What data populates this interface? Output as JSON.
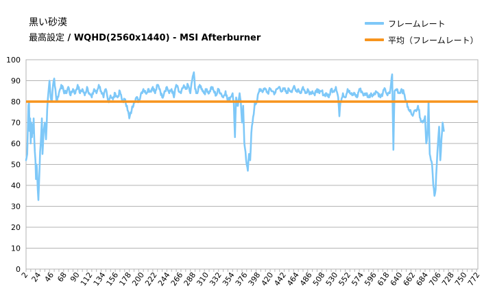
{
  "chart_data": {
    "type": "line",
    "title": "黒い砂漠",
    "subtitle_plain": "最高設定",
    "subtitle_bold": " / WQHD(2560x1440) - MSI Afterburner",
    "legend_position": "top-right",
    "ylim": [
      0,
      100
    ],
    "y_ticks": [
      "0",
      "10",
      "20",
      "30",
      "40",
      "50",
      "60",
      "70",
      "80",
      "90",
      "100"
    ],
    "x_ticks": [
      "2",
      "24",
      "46",
      "68",
      "90",
      "112",
      "134",
      "156",
      "178",
      "200",
      "222",
      "244",
      "266",
      "288",
      "310",
      "332",
      "354",
      "376",
      "398",
      "420",
      "442",
      "464",
      "486",
      "508",
      "530",
      "552",
      "574",
      "596",
      "618",
      "640",
      "662",
      "684",
      "706",
      "728",
      "750",
      "772"
    ],
    "x_first": 2,
    "x_last": 772,
    "grid": true,
    "series": [
      {
        "name": "フレームレート",
        "color": "#7EC8F8",
        "keypoints": [
          [
            2,
            52
          ],
          [
            4,
            55
          ],
          [
            6,
            78
          ],
          [
            7,
            80
          ],
          [
            8,
            66
          ],
          [
            9,
            72
          ],
          [
            10,
            60
          ],
          [
            11,
            70
          ],
          [
            12,
            63
          ],
          [
            13,
            69
          ],
          [
            14,
            65
          ],
          [
            15,
            72
          ],
          [
            16,
            62
          ],
          [
            18,
            52
          ],
          [
            19,
            43
          ],
          [
            20,
            50
          ],
          [
            21,
            45
          ],
          [
            22,
            38
          ],
          [
            23,
            33
          ],
          [
            24,
            40
          ],
          [
            25,
            48
          ],
          [
            26,
            56
          ],
          [
            27,
            60
          ],
          [
            28,
            66
          ],
          [
            29,
            72
          ],
          [
            30,
            55
          ],
          [
            32,
            66
          ],
          [
            34,
            70
          ],
          [
            36,
            62
          ],
          [
            38,
            76
          ],
          [
            40,
            84
          ],
          [
            42,
            90
          ],
          [
            44,
            82
          ],
          [
            46,
            80
          ],
          [
            48,
            88
          ],
          [
            50,
            91
          ],
          [
            52,
            86
          ],
          [
            54,
            80
          ],
          [
            58,
            84
          ],
          [
            62,
            88
          ],
          [
            66,
            85
          ],
          [
            70,
            84
          ],
          [
            74,
            87
          ],
          [
            78,
            83
          ],
          [
            82,
            86
          ],
          [
            86,
            84
          ],
          [
            90,
            88
          ],
          [
            94,
            84
          ],
          [
            98,
            86
          ],
          [
            102,
            83
          ],
          [
            106,
            87
          ],
          [
            110,
            84
          ],
          [
            114,
            82
          ],
          [
            118,
            86
          ],
          [
            122,
            84
          ],
          [
            126,
            88
          ],
          [
            130,
            85
          ],
          [
            134,
            82
          ],
          [
            138,
            86
          ],
          [
            142,
            80
          ],
          [
            146,
            83
          ],
          [
            150,
            81
          ],
          [
            154,
            84
          ],
          [
            158,
            82
          ],
          [
            162,
            85
          ],
          [
            166,
            80
          ],
          [
            170,
            81
          ],
          [
            174,
            78
          ],
          [
            178,
            72
          ],
          [
            182,
            76
          ],
          [
            186,
            80
          ],
          [
            190,
            82
          ],
          [
            194,
            80
          ],
          [
            198,
            84
          ],
          [
            202,
            86
          ],
          [
            206,
            84
          ],
          [
            210,
            86
          ],
          [
            214,
            85
          ],
          [
            218,
            87
          ],
          [
            222,
            84
          ],
          [
            226,
            88
          ],
          [
            230,
            86
          ],
          [
            234,
            82
          ],
          [
            238,
            85
          ],
          [
            242,
            87
          ],
          [
            246,
            84
          ],
          [
            250,
            86
          ],
          [
            254,
            82
          ],
          [
            258,
            88
          ],
          [
            262,
            85
          ],
          [
            266,
            84
          ],
          [
            270,
            87
          ],
          [
            274,
            86
          ],
          [
            278,
            88
          ],
          [
            282,
            84
          ],
          [
            286,
            92
          ],
          [
            288,
            94
          ],
          [
            290,
            86
          ],
          [
            294,
            84
          ],
          [
            298,
            88
          ],
          [
            302,
            86
          ],
          [
            306,
            84
          ],
          [
            310,
            86
          ],
          [
            314,
            84
          ],
          [
            318,
            87
          ],
          [
            322,
            85
          ],
          [
            326,
            83
          ],
          [
            330,
            86
          ],
          [
            334,
            84
          ],
          [
            338,
            82
          ],
          [
            342,
            85
          ],
          [
            346,
            80
          ],
          [
            350,
            82
          ],
          [
            354,
            84
          ],
          [
            356,
            80
          ],
          [
            358,
            63
          ],
          [
            360,
            82
          ],
          [
            362,
            78
          ],
          [
            364,
            80
          ],
          [
            366,
            84
          ],
          [
            368,
            80
          ],
          [
            370,
            70
          ],
          [
            372,
            78
          ],
          [
            374,
            60
          ],
          [
            376,
            56
          ],
          [
            378,
            50
          ],
          [
            380,
            47
          ],
          [
            382,
            55
          ],
          [
            384,
            52
          ],
          [
            386,
            65
          ],
          [
            388,
            70
          ],
          [
            390,
            74
          ],
          [
            392,
            80
          ],
          [
            394,
            79
          ],
          [
            398,
            84
          ],
          [
            402,
            86
          ],
          [
            406,
            85
          ],
          [
            410,
            86
          ],
          [
            414,
            84
          ],
          [
            418,
            86
          ],
          [
            422,
            85
          ],
          [
            426,
            84
          ],
          [
            430,
            86
          ],
          [
            434,
            87
          ],
          [
            438,
            85
          ],
          [
            442,
            86
          ],
          [
            446,
            84
          ],
          [
            450,
            86
          ],
          [
            454,
            85
          ],
          [
            458,
            87
          ],
          [
            462,
            85
          ],
          [
            466,
            86
          ],
          [
            470,
            84
          ],
          [
            474,
            87
          ],
          [
            478,
            84
          ],
          [
            482,
            86
          ],
          [
            486,
            84
          ],
          [
            490,
            85
          ],
          [
            494,
            83
          ],
          [
            498,
            86
          ],
          [
            502,
            84
          ],
          [
            506,
            85
          ],
          [
            510,
            83
          ],
          [
            514,
            84
          ],
          [
            518,
            82
          ],
          [
            522,
            86
          ],
          [
            526,
            85
          ],
          [
            530,
            87
          ],
          [
            534,
            82
          ],
          [
            536,
            73
          ],
          [
            538,
            80
          ],
          [
            542,
            84
          ],
          [
            546,
            82
          ],
          [
            550,
            86
          ],
          [
            554,
            84
          ],
          [
            558,
            83
          ],
          [
            562,
            84
          ],
          [
            566,
            82
          ],
          [
            570,
            86
          ],
          [
            574,
            85
          ],
          [
            578,
            83
          ],
          [
            582,
            84
          ],
          [
            586,
            82
          ],
          [
            590,
            84
          ],
          [
            594,
            83
          ],
          [
            598,
            85
          ],
          [
            602,
            84
          ],
          [
            606,
            82
          ],
          [
            610,
            84
          ],
          [
            614,
            86
          ],
          [
            618,
            83
          ],
          [
            622,
            84
          ],
          [
            626,
            93
          ],
          [
            628,
            57
          ],
          [
            630,
            85
          ],
          [
            634,
            86
          ],
          [
            638,
            84
          ],
          [
            642,
            86
          ],
          [
            646,
            84
          ],
          [
            650,
            80
          ],
          [
            654,
            76
          ],
          [
            658,
            75
          ],
          [
            662,
            74
          ],
          [
            666,
            76
          ],
          [
            670,
            78
          ],
          [
            674,
            72
          ],
          [
            678,
            70
          ],
          [
            682,
            73
          ],
          [
            684,
            60
          ],
          [
            686,
            64
          ],
          [
            688,
            80
          ],
          [
            690,
            55
          ],
          [
            692,
            52
          ],
          [
            694,
            50
          ],
          [
            696,
            40
          ],
          [
            698,
            35
          ],
          [
            700,
            38
          ],
          [
            702,
            50
          ],
          [
            704,
            60
          ],
          [
            706,
            68
          ],
          [
            708,
            52
          ],
          [
            710,
            62
          ],
          [
            712,
            70
          ],
          [
            714,
            66
          ]
        ]
      },
      {
        "name": "平均（フレームレート）",
        "color": "#F7941D",
        "value": 80
      }
    ]
  }
}
